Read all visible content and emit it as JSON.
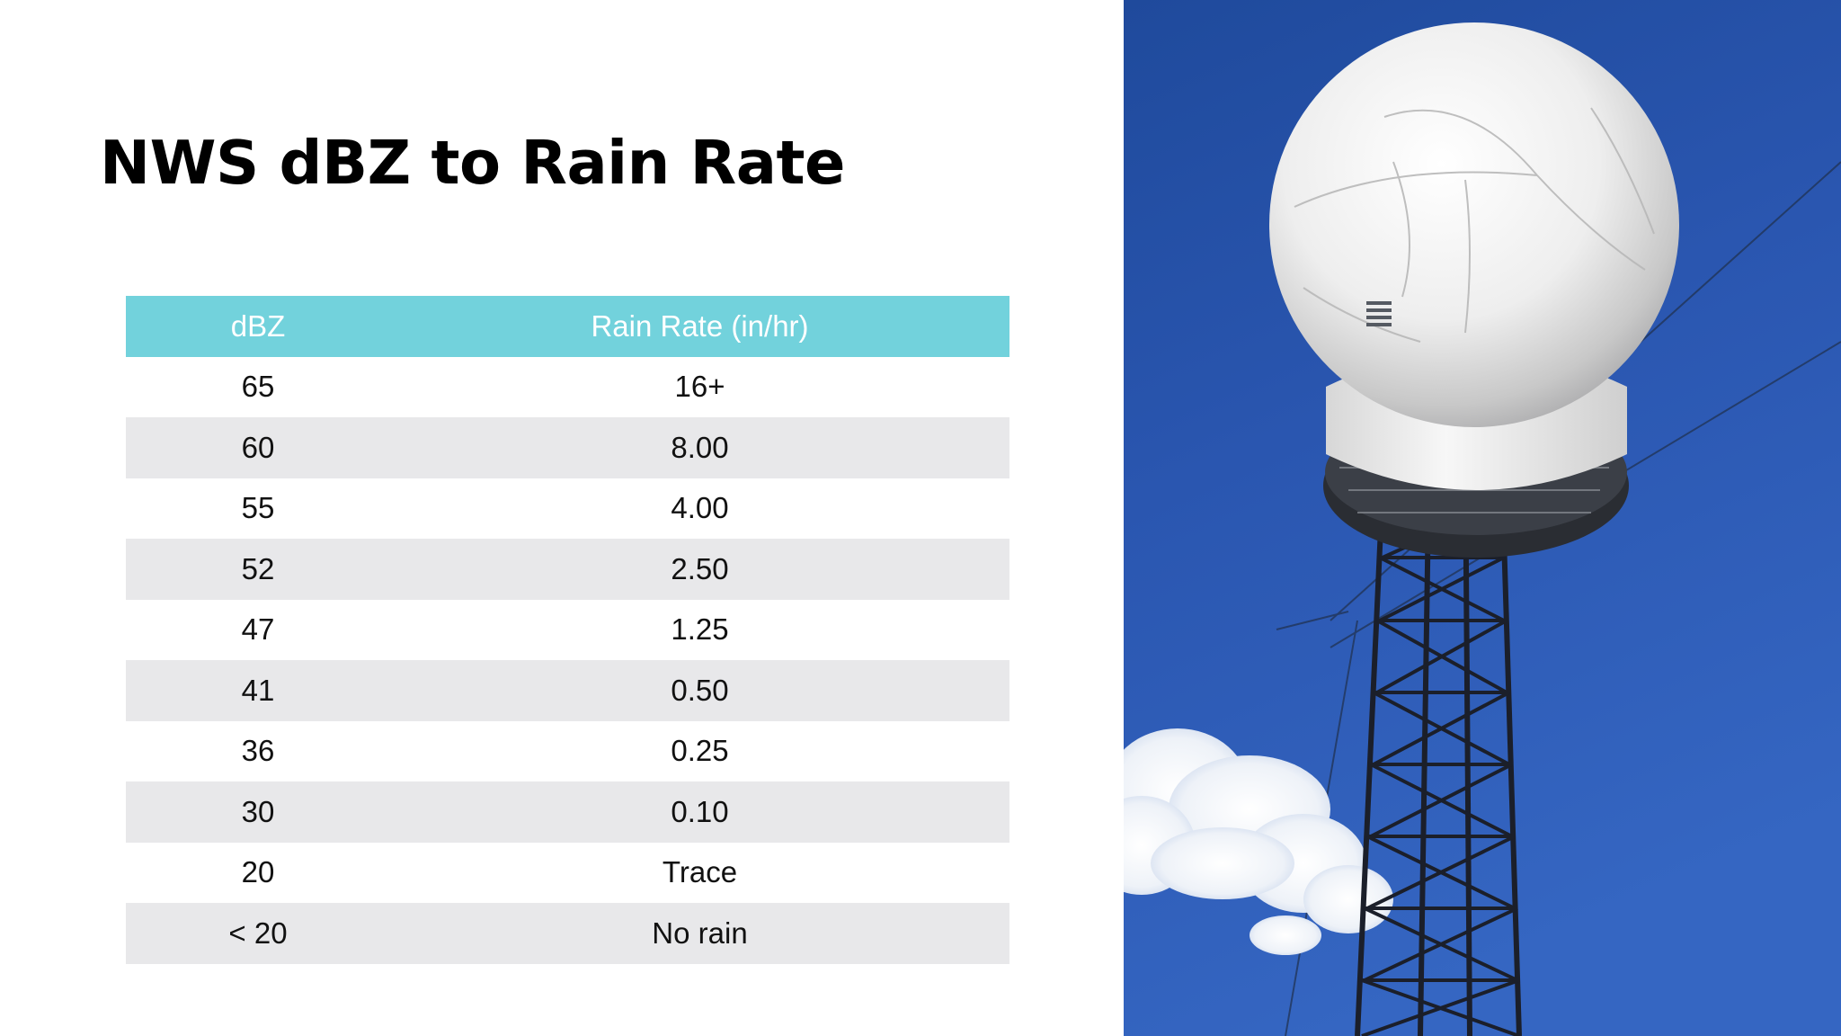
{
  "slide": {
    "title": "NWS dBZ to Rain Rate"
  },
  "table": {
    "headers": {
      "dbz": "dBZ",
      "rate": "Rain Rate (in/hr)"
    },
    "rows": [
      {
        "dbz": "65",
        "rate": "16+"
      },
      {
        "dbz": "60",
        "rate": "8.00"
      },
      {
        "dbz": "55",
        "rate": "4.00"
      },
      {
        "dbz": "52",
        "rate": "2.50"
      },
      {
        "dbz": "47",
        "rate": "1.25"
      },
      {
        "dbz": "41",
        "rate": "0.50"
      },
      {
        "dbz": "36",
        "rate": "0.25"
      },
      {
        "dbz": "30",
        "rate": "0.10"
      },
      {
        "dbz": "20",
        "rate": "Trace"
      },
      {
        "dbz": "< 20",
        "rate": "No rain"
      }
    ],
    "header_color": "#72d2dc",
    "stripe_color": "#e8e8ea"
  },
  "photo": {
    "subject": "radar-tower-photo",
    "sky_color": "#2a56b0"
  }
}
